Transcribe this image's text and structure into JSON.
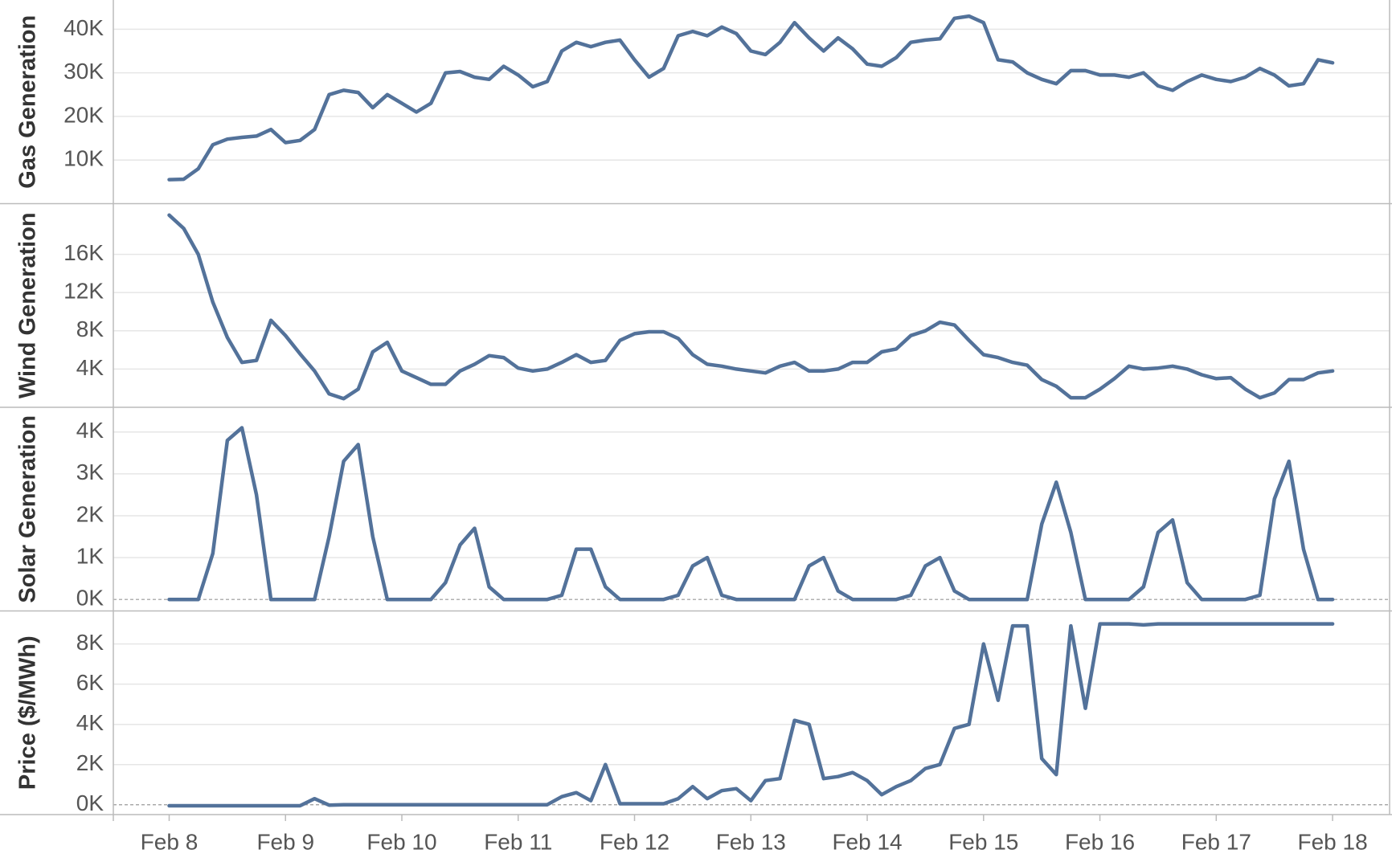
{
  "chart_data": {
    "type": "line",
    "grid": true,
    "x": [
      8,
      8.125,
      8.25,
      8.375,
      8.5,
      8.625,
      8.75,
      8.875,
      9,
      9.125,
      9.25,
      9.375,
      9.5,
      9.625,
      9.75,
      9.875,
      10,
      10.125,
      10.25,
      10.375,
      10.5,
      10.625,
      10.75,
      10.875,
      11,
      11.125,
      11.25,
      11.375,
      11.5,
      11.625,
      11.75,
      11.875,
      12,
      12.125,
      12.25,
      12.375,
      12.5,
      12.625,
      12.75,
      12.875,
      13,
      13.125,
      13.25,
      13.375,
      13.5,
      13.625,
      13.75,
      13.875,
      14,
      14.125,
      14.25,
      14.375,
      14.5,
      14.625,
      14.75,
      14.875,
      15,
      15.125,
      15.25,
      15.375,
      15.5,
      15.625,
      15.75,
      15.875,
      16,
      16.125,
      16.25,
      16.375,
      16.5,
      16.625,
      16.75,
      16.875,
      17,
      17.125,
      17.25,
      17.375,
      17.5,
      17.625,
      17.75,
      17.875,
      18
    ],
    "xlim": [
      7.52,
      18.49
    ],
    "xticks": [
      {
        "value": 8,
        "label": "Feb 8"
      },
      {
        "value": 9,
        "label": "Feb 9"
      },
      {
        "value": 10,
        "label": "Feb 10"
      },
      {
        "value": 11,
        "label": "Feb 11"
      },
      {
        "value": 12,
        "label": "Feb 12"
      },
      {
        "value": 13,
        "label": "Feb 13"
      },
      {
        "value": 14,
        "label": "Feb 14"
      },
      {
        "value": 15,
        "label": "Feb 15"
      },
      {
        "value": 16,
        "label": "Feb 16"
      },
      {
        "value": 17,
        "label": "Feb 17"
      },
      {
        "value": 18,
        "label": "Feb 18"
      }
    ],
    "panels": [
      {
        "ylabel": "Gas Generation",
        "color": "#53729a",
        "ylim": [
          0,
          46700
        ],
        "yticks": [
          {
            "value": 10000,
            "label": "10K"
          },
          {
            "value": 20000,
            "label": "20K"
          },
          {
            "value": 30000,
            "label": "30K"
          },
          {
            "value": 40000,
            "label": "40K"
          }
        ],
        "values": [
          5500,
          5600,
          8000,
          13500,
          14800,
          15200,
          15500,
          17000,
          14000,
          14500,
          17000,
          25000,
          26000,
          25500,
          22000,
          25000,
          23000,
          21000,
          23000,
          30000,
          30300,
          29000,
          28500,
          31500,
          29500,
          26800,
          28000,
          35000,
          37000,
          36000,
          37000,
          37500,
          33000,
          29000,
          31000,
          38500,
          39500,
          38500,
          40500,
          39000,
          35000,
          34200,
          37000,
          41500,
          38000,
          35000,
          38000,
          35500,
          32000,
          31500,
          33500,
          37000,
          37500,
          37800,
          42500,
          43000,
          41500,
          33000,
          32500,
          30000,
          28500,
          27500,
          30500,
          30500,
          29500,
          29500,
          29000,
          30000,
          27000,
          26000,
          28000,
          29500,
          28500,
          28000,
          29000,
          31000,
          29500,
          27000,
          27500,
          33000,
          32300
        ]
      },
      {
        "ylabel": "Wind Generation",
        "color": "#53729a",
        "ylim": [
          0,
          21300
        ],
        "yticks": [
          {
            "value": 4000,
            "label": "4K"
          },
          {
            "value": 8000,
            "label": "8K"
          },
          {
            "value": 12000,
            "label": "12K"
          },
          {
            "value": 16000,
            "label": "16K"
          }
        ],
        "values": [
          20100,
          18700,
          16000,
          11000,
          7300,
          4700,
          4900,
          9100,
          7500,
          5600,
          3800,
          1400,
          900,
          1900,
          5800,
          6800,
          3800,
          3100,
          2400,
          2400,
          3800,
          4500,
          5400,
          5200,
          4100,
          3800,
          4000,
          4700,
          5500,
          4700,
          4900,
          7000,
          7700,
          7900,
          7900,
          7200,
          5500,
          4500,
          4300,
          4000,
          3800,
          3600,
          4300,
          4700,
          3800,
          3800,
          4000,
          4700,
          4700,
          5800,
          6100,
          7500,
          8000,
          8900,
          8600,
          7000,
          5500,
          5200,
          4700,
          4400,
          2900,
          2200,
          1000,
          1000,
          1900,
          3000,
          4300,
          4000,
          4100,
          4300,
          4000,
          3400,
          3000,
          3100,
          1900,
          1000,
          1500,
          2900,
          2900,
          3600,
          3800
        ]
      },
      {
        "ylabel": "Solar Generation",
        "color": "#53729a",
        "ylim": [
          -275,
          4590
        ],
        "yticks": [
          {
            "value": 0,
            "label": "0K"
          },
          {
            "value": 1000,
            "label": "1K"
          },
          {
            "value": 2000,
            "label": "2K"
          },
          {
            "value": 3000,
            "label": "3K"
          },
          {
            "value": 4000,
            "label": "4K"
          }
        ],
        "values": [
          0,
          0,
          0,
          1100,
          3800,
          4100,
          2500,
          0,
          0,
          0,
          0,
          1500,
          3300,
          3700,
          1500,
          0,
          0,
          0,
          0,
          400,
          1300,
          1700,
          300,
          0,
          0,
          0,
          0,
          100,
          1200,
          1200,
          300,
          0,
          0,
          0,
          0,
          100,
          800,
          1000,
          100,
          0,
          0,
          0,
          0,
          0,
          800,
          1000,
          200,
          0,
          0,
          0,
          0,
          100,
          800,
          1000,
          200,
          0,
          0,
          0,
          0,
          0,
          1800,
          2800,
          1600,
          0,
          0,
          0,
          0,
          300,
          1600,
          1900,
          400,
          0,
          0,
          0,
          0,
          100,
          2400,
          3300,
          1200,
          0,
          0
        ]
      },
      {
        "ylabel": "Price ($/MWh)",
        "color": "#53729a",
        "ylim": [
          -490,
          9645
        ],
        "yticks": [
          {
            "value": 0,
            "label": "0K"
          },
          {
            "value": 2000,
            "label": "2K"
          },
          {
            "value": 4000,
            "label": "4K"
          },
          {
            "value": 6000,
            "label": "6K"
          },
          {
            "value": 8000,
            "label": "8K"
          }
        ],
        "values": [
          -50,
          -50,
          -50,
          -50,
          -50,
          -50,
          -50,
          -50,
          -50,
          -50,
          300,
          -20,
          0,
          0,
          0,
          0,
          0,
          0,
          0,
          0,
          0,
          0,
          0,
          0,
          0,
          0,
          0,
          400,
          600,
          200,
          2000,
          50,
          50,
          50,
          50,
          300,
          900,
          300,
          700,
          800,
          200,
          1200,
          1300,
          4200,
          4000,
          1300,
          1400,
          1600,
          1200,
          500,
          900,
          1200,
          1800,
          2000,
          3800,
          4000,
          8000,
          5200,
          8900,
          8900,
          2300,
          1500,
          8900,
          4800,
          9000,
          9000,
          9000,
          8950,
          9000,
          9000,
          9000,
          9000,
          9000,
          9000,
          9000,
          9000,
          9000,
          9000,
          9000,
          9000,
          9000
        ]
      }
    ]
  }
}
